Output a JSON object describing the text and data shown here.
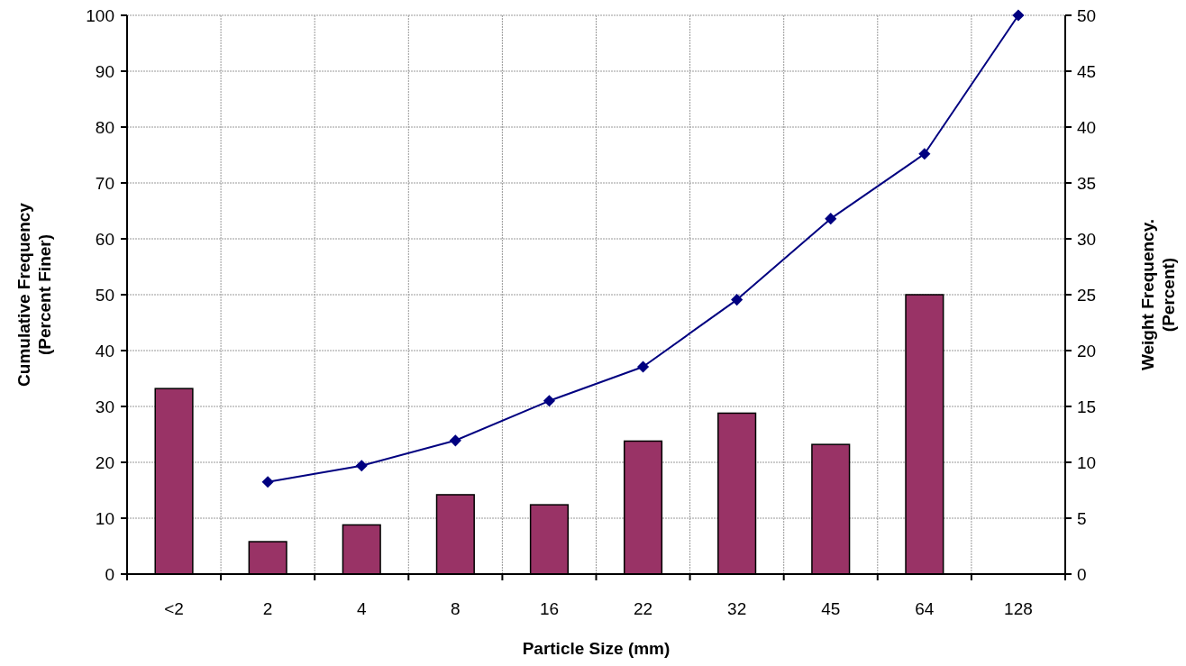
{
  "chart_data": {
    "type": "bar",
    "xlabel": "Particle Size (mm)",
    "ylabel": "Cumulative Frequency\n(Percent Finer)",
    "y2label": "Weight Frequency.\n(Percent)",
    "categories": [
      "<2",
      "2",
      "4",
      "8",
      "16",
      "22",
      "32",
      "45",
      "64",
      "128"
    ],
    "series": [
      {
        "axis": "y2",
        "color": "#993366",
        "values": [
          16.6,
          2.9,
          4.4,
          7.1,
          6.2,
          11.9,
          14.4,
          11.6,
          25,
          null
        ]
      },
      {
        "type": "line",
        "color": "#000080",
        "marker": "diamond",
        "line_style": "solid",
        "values": [
          null,
          16.5,
          19.4,
          23.9,
          31.0,
          37.1,
          49.1,
          63.6,
          75.2,
          100
        ]
      }
    ],
    "ylim": [
      0,
      100
    ],
    "yticks": [
      0,
      10,
      20,
      30,
      40,
      50,
      60,
      70,
      80,
      90,
      100
    ],
    "y2lim": [
      0,
      50
    ],
    "y2ticks": [
      0,
      5,
      10,
      15,
      20,
      25,
      30,
      35,
      40,
      45,
      50
    ],
    "grid": true
  }
}
